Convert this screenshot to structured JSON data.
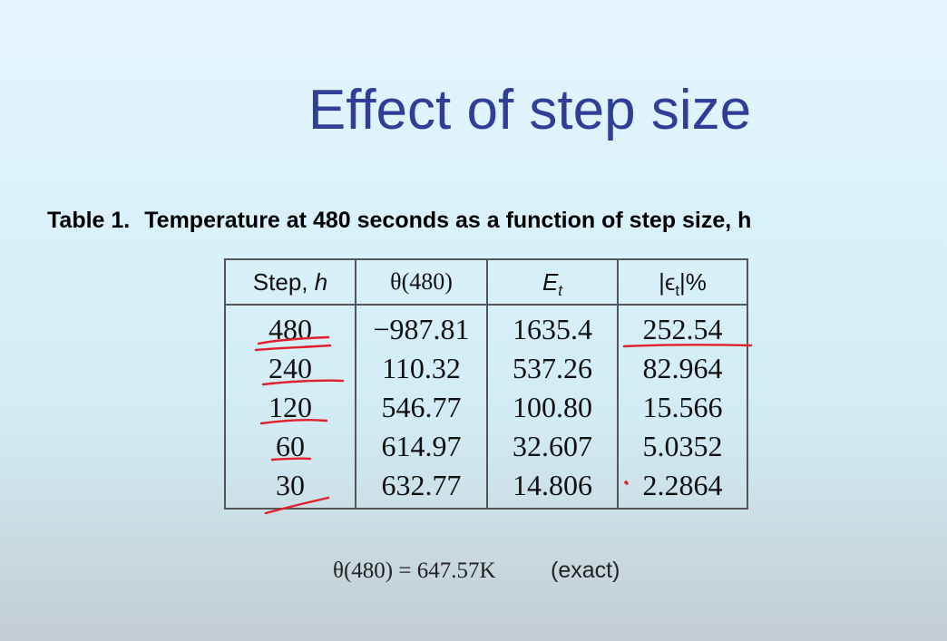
{
  "slide": {
    "title": "Effect of step size",
    "caption_number": "Table 1.",
    "caption_text": "Temperature at 480 seconds as a function of step size, h"
  },
  "table": {
    "headers": {
      "step": "Step, ",
      "step_var": "h",
      "theta": "θ(480)",
      "et_main": "E",
      "et_sub": "t",
      "eps_open": "|ϵ",
      "eps_sub": "t",
      "eps_close": "|%"
    },
    "rows": [
      {
        "h": "480",
        "theta": "−987.81",
        "et": "1635.4",
        "eps": "252.54"
      },
      {
        "h": "240",
        "theta": "110.32",
        "et": "537.26",
        "eps": "82.964"
      },
      {
        "h": "120",
        "theta": "546.77",
        "et": "100.80",
        "eps": "15.566"
      },
      {
        "h": "60",
        "theta": "614.97",
        "et": "32.607",
        "eps": "5.0352"
      },
      {
        "h": "30",
        "theta": "632.77",
        "et": "14.806",
        "eps": "2.2864"
      }
    ]
  },
  "footer": {
    "formula": "θ(480) = 647.57K",
    "note": "(exact)"
  },
  "colors": {
    "title": "#2f3f98",
    "annotation_ink": "#e0202c"
  }
}
